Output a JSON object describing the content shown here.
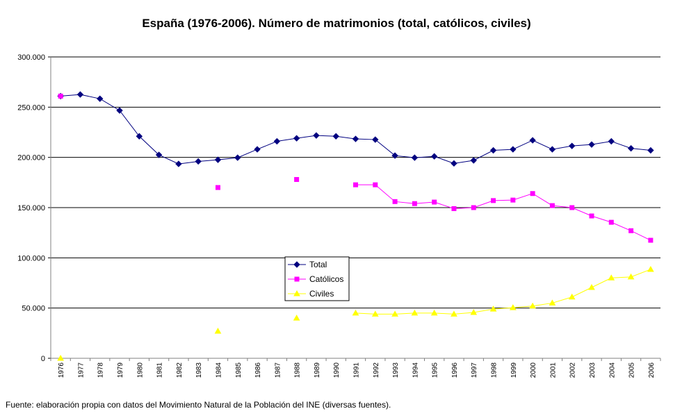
{
  "chart_data": {
    "type": "line",
    "title": "España (1976-2006). Número de matrimonios (total, católicos, civiles)",
    "note": "Fuente: elaboración propia con datos del Movimiento Natural de la Población del INE (diversas fuentes).",
    "categories": [
      "1976",
      "1977",
      "1978",
      "1979",
      "1980",
      "1981",
      "1982",
      "1983",
      "1984",
      "1985",
      "1986",
      "1987",
      "1988",
      "1989",
      "1990",
      "1991",
      "1992",
      "1993",
      "1994",
      "1995",
      "1996",
      "1997",
      "1998",
      "1999",
      "2000",
      "2001",
      "2002",
      "2003",
      "2004",
      "2005",
      "2006"
    ],
    "series": [
      {
        "name": "Total",
        "color": "#000080",
        "marker": "diamond",
        "values": [
          261000,
          262600,
          258400,
          246700,
          221000,
          202500,
          193500,
          196000,
          197600,
          199700,
          208000,
          216000,
          219000,
          221800,
          221000,
          218400,
          217700,
          201800,
          199700,
          201000,
          194000,
          197000,
          207000,
          208000,
          217000,
          208000,
          211400,
          212800,
          216000,
          209000,
          207000
        ]
      },
      {
        "name": "Católicos",
        "color": "#ff00ff",
        "marker": "square",
        "values": [
          261000,
          null,
          null,
          null,
          null,
          null,
          null,
          null,
          170000,
          null,
          null,
          null,
          178000,
          null,
          null,
          172700,
          172700,
          156000,
          154000,
          155500,
          149000,
          150000,
          157000,
          157500,
          164000,
          152000,
          150000,
          141700,
          135400,
          127000,
          117500
        ]
      },
      {
        "name": "Civiles",
        "color": "#ffff00",
        "marker": "triangle",
        "values": [
          0,
          null,
          null,
          null,
          null,
          null,
          null,
          null,
          27000,
          null,
          null,
          null,
          40000,
          null,
          null,
          45000,
          44000,
          44000,
          45000,
          45000,
          44000,
          45600,
          49000,
          50400,
          52000,
          55000,
          61000,
          70500,
          80000,
          81000,
          88500
        ]
      }
    ],
    "ylim": [
      0,
      300000
    ],
    "yticks": [
      0,
      {
        "value": 50000,
        "label": "50.000"
      },
      {
        "value": 100000,
        "label": "100.000"
      },
      {
        "value": 150000,
        "label": "150.000"
      },
      {
        "value": 200000,
        "label": "200.000"
      },
      {
        "value": 250000,
        "label": "250.000"
      },
      {
        "value": 300000,
        "label": "300.000"
      }
    ],
    "grid": true
  }
}
